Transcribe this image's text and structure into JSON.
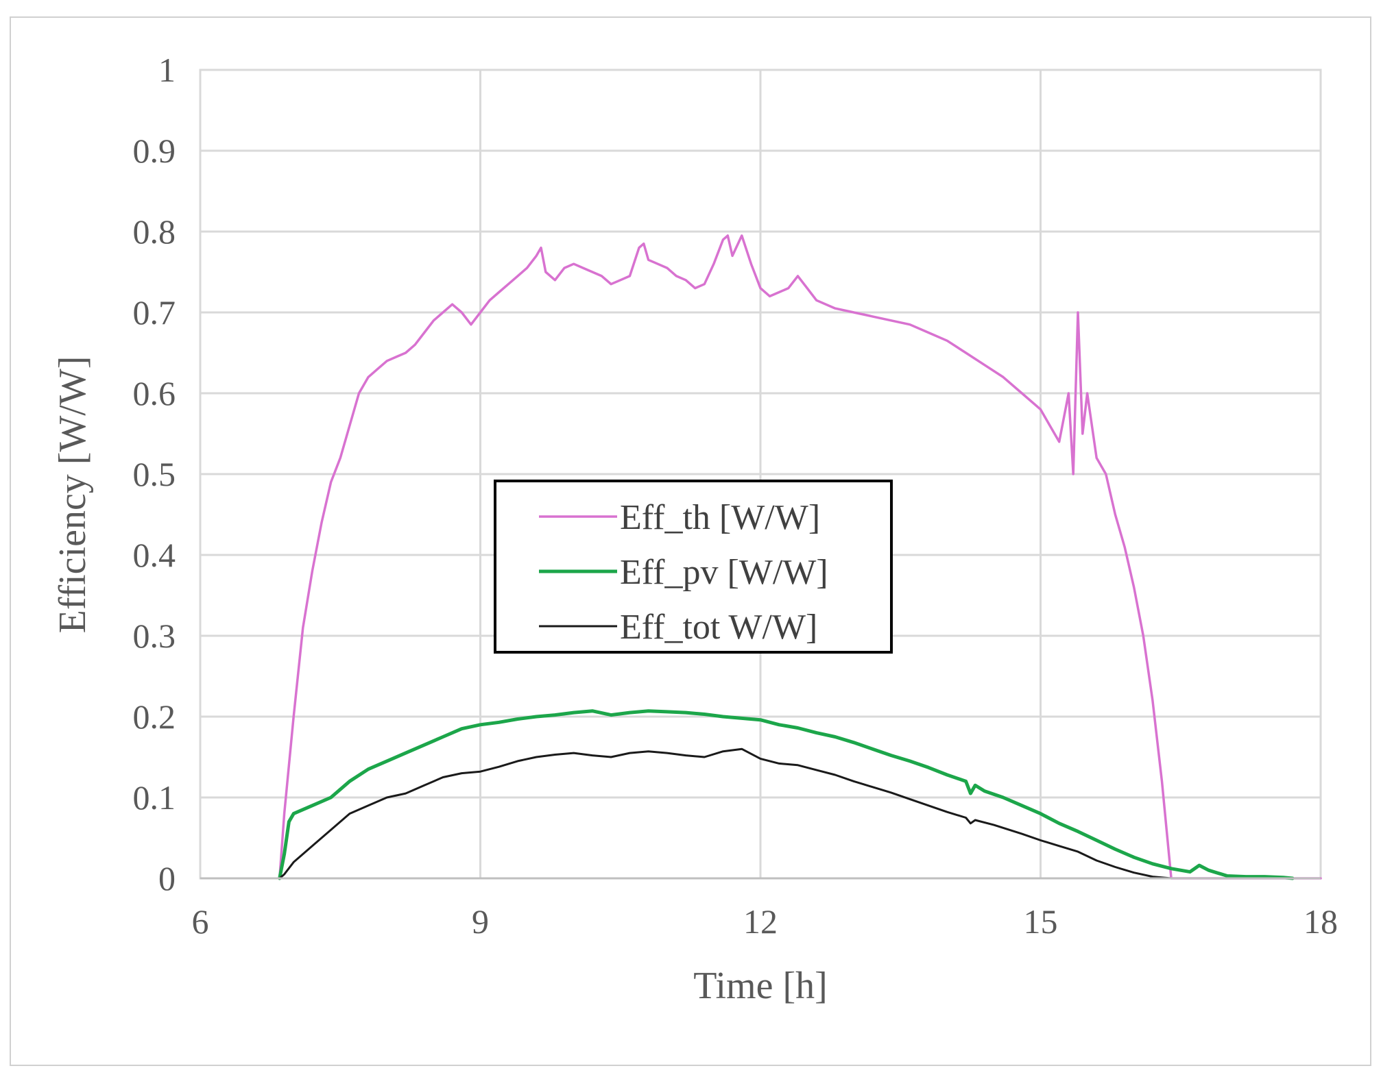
{
  "chart_data": {
    "type": "line",
    "title": "",
    "xlabel": "Time [h]",
    "ylabel": "Efficiency [W/W]",
    "xlim": [
      6,
      18
    ],
    "ylim": [
      0,
      1
    ],
    "x_ticks": [
      6,
      9,
      12,
      15,
      18
    ],
    "x_tick_labels": [
      "6",
      "9",
      "12",
      "15",
      "18"
    ],
    "y_ticks": [
      0,
      0.1,
      0.2,
      0.3,
      0.4,
      0.5,
      0.6,
      0.7,
      0.8,
      0.9,
      1
    ],
    "y_tick_labels": [
      "0",
      "0.1",
      "0.2",
      "0.3",
      "0.4",
      "0.5",
      "0.6",
      "0.7",
      "0.8",
      "0.9",
      "1"
    ],
    "grid": true,
    "legend_position": "center",
    "series": [
      {
        "name": "Eff_th [W/W]",
        "color": "#d872d0",
        "x": [
          6.85,
          6.9,
          7.0,
          7.1,
          7.2,
          7.3,
          7.4,
          7.5,
          7.6,
          7.7,
          7.8,
          7.9,
          8.0,
          8.1,
          8.2,
          8.3,
          8.4,
          8.5,
          8.6,
          8.7,
          8.8,
          8.9,
          9.0,
          9.1,
          9.2,
          9.3,
          9.4,
          9.5,
          9.6,
          9.65,
          9.7,
          9.8,
          9.9,
          10.0,
          10.1,
          10.2,
          10.3,
          10.4,
          10.5,
          10.6,
          10.7,
          10.75,
          10.8,
          10.9,
          11.0,
          11.1,
          11.2,
          11.3,
          11.4,
          11.5,
          11.6,
          11.65,
          11.7,
          11.8,
          11.9,
          12.0,
          12.1,
          12.2,
          12.3,
          12.4,
          12.5,
          12.6,
          12.8,
          13.0,
          13.2,
          13.4,
          13.6,
          13.8,
          14.0,
          14.2,
          14.4,
          14.6,
          14.8,
          15.0,
          15.1,
          15.2,
          15.3,
          15.35,
          15.4,
          15.45,
          15.5,
          15.6,
          15.7,
          15.8,
          15.9,
          16.0,
          16.1,
          16.2,
          16.3,
          16.35,
          16.4,
          16.5,
          16.8,
          17.2,
          17.6,
          18.0
        ],
        "y": [
          0.0,
          0.08,
          0.2,
          0.31,
          0.38,
          0.44,
          0.49,
          0.52,
          0.56,
          0.6,
          0.62,
          0.63,
          0.64,
          0.645,
          0.65,
          0.66,
          0.675,
          0.69,
          0.7,
          0.71,
          0.7,
          0.685,
          0.7,
          0.715,
          0.725,
          0.735,
          0.745,
          0.755,
          0.77,
          0.78,
          0.75,
          0.74,
          0.755,
          0.76,
          0.755,
          0.75,
          0.745,
          0.735,
          0.74,
          0.745,
          0.78,
          0.785,
          0.765,
          0.76,
          0.755,
          0.745,
          0.74,
          0.73,
          0.735,
          0.76,
          0.79,
          0.795,
          0.77,
          0.795,
          0.76,
          0.73,
          0.72,
          0.725,
          0.73,
          0.745,
          0.73,
          0.715,
          0.705,
          0.7,
          0.695,
          0.69,
          0.685,
          0.675,
          0.665,
          0.65,
          0.635,
          0.62,
          0.6,
          0.58,
          0.56,
          0.54,
          0.6,
          0.5,
          0.7,
          0.55,
          0.6,
          0.52,
          0.5,
          0.45,
          0.41,
          0.36,
          0.3,
          0.22,
          0.12,
          0.06,
          0.0,
          0.0,
          0.0,
          0.0,
          0.0,
          0.0
        ]
      },
      {
        "name": "Eff_pv [W/W]",
        "color": "#1ca64a",
        "x": [
          6.85,
          6.9,
          6.95,
          7.0,
          7.2,
          7.4,
          7.6,
          7.8,
          8.0,
          8.2,
          8.4,
          8.6,
          8.8,
          9.0,
          9.2,
          9.4,
          9.6,
          9.8,
          10.0,
          10.2,
          10.4,
          10.6,
          10.8,
          11.0,
          11.2,
          11.4,
          11.6,
          11.8,
          12.0,
          12.2,
          12.4,
          12.6,
          12.8,
          13.0,
          13.2,
          13.4,
          13.6,
          13.8,
          14.0,
          14.2,
          14.25,
          14.3,
          14.4,
          14.6,
          14.8,
          15.0,
          15.2,
          15.4,
          15.6,
          15.8,
          16.0,
          16.2,
          16.4,
          16.6,
          16.7,
          16.8,
          17.0,
          17.2,
          17.4,
          17.6,
          17.7
        ],
        "y": [
          0.0,
          0.03,
          0.07,
          0.08,
          0.09,
          0.1,
          0.12,
          0.135,
          0.145,
          0.155,
          0.165,
          0.175,
          0.185,
          0.19,
          0.193,
          0.197,
          0.2,
          0.202,
          0.205,
          0.207,
          0.202,
          0.205,
          0.207,
          0.206,
          0.205,
          0.203,
          0.2,
          0.198,
          0.196,
          0.19,
          0.186,
          0.18,
          0.175,
          0.168,
          0.16,
          0.152,
          0.145,
          0.137,
          0.128,
          0.12,
          0.105,
          0.115,
          0.108,
          0.1,
          0.09,
          0.08,
          0.068,
          0.058,
          0.047,
          0.036,
          0.026,
          0.018,
          0.012,
          0.008,
          0.016,
          0.01,
          0.003,
          0.002,
          0.002,
          0.001,
          0.0
        ]
      },
      {
        "name": "Eff_tot W/W]",
        "color": "#1a1a1a",
        "x": [
          6.85,
          6.9,
          7.0,
          7.2,
          7.4,
          7.6,
          7.8,
          8.0,
          8.2,
          8.4,
          8.6,
          8.8,
          9.0,
          9.2,
          9.4,
          9.6,
          9.8,
          10.0,
          10.2,
          10.4,
          10.6,
          10.8,
          11.0,
          11.2,
          11.4,
          11.6,
          11.8,
          12.0,
          12.2,
          12.4,
          12.6,
          12.8,
          13.0,
          13.2,
          13.4,
          13.6,
          13.8,
          14.0,
          14.2,
          14.25,
          14.3,
          14.5,
          14.8,
          15.0,
          15.2,
          15.4,
          15.6,
          15.8,
          16.0,
          16.2,
          16.4,
          16.8,
          17.2,
          17.6
        ],
        "y": [
          0.0,
          0.005,
          0.02,
          0.04,
          0.06,
          0.08,
          0.09,
          0.1,
          0.105,
          0.115,
          0.125,
          0.13,
          0.132,
          0.138,
          0.145,
          0.15,
          0.153,
          0.155,
          0.152,
          0.15,
          0.155,
          0.157,
          0.155,
          0.152,
          0.15,
          0.157,
          0.16,
          0.148,
          0.142,
          0.14,
          0.134,
          0.128,
          0.12,
          0.113,
          0.106,
          0.098,
          0.09,
          0.082,
          0.075,
          0.068,
          0.072,
          0.066,
          0.055,
          0.047,
          0.04,
          0.033,
          0.022,
          0.014,
          0.007,
          0.002,
          0.0,
          0.0,
          0.0,
          0.0
        ]
      }
    ]
  }
}
